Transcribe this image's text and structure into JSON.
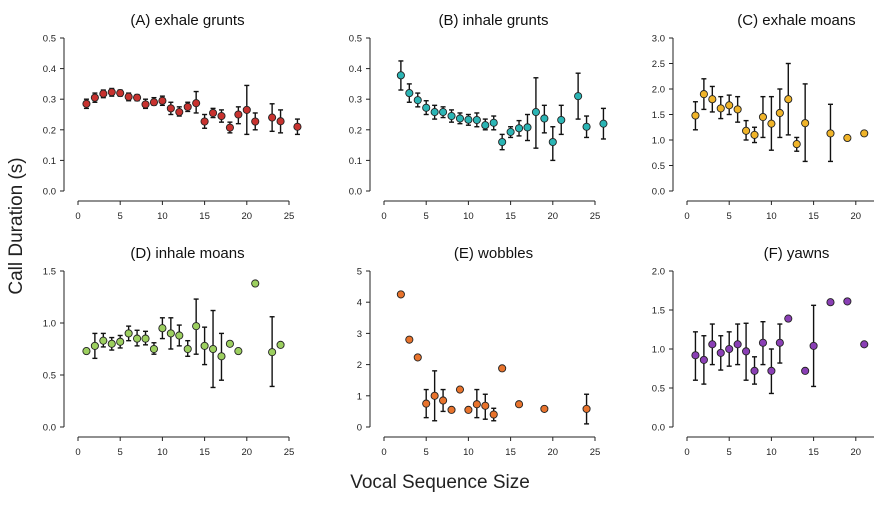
{
  "figure": {
    "ylabel": "Call Duration (s)",
    "xlabel": "Vocal Sequence Size"
  },
  "chart_data": [
    {
      "type": "scatter",
      "title": "(A) exhale grunts",
      "color": "#c8322f",
      "xlim": [
        0,
        27
      ],
      "ylim": [
        0,
        0.5
      ],
      "xticks": [
        0,
        5,
        10,
        15,
        20,
        25
      ],
      "yticks": [
        "0.0",
        "0.1",
        "0.2",
        "0.3",
        "0.4",
        "0.5"
      ],
      "points": [
        {
          "x": 1,
          "y": 0.285,
          "lo": 0.27,
          "hi": 0.3
        },
        {
          "x": 2,
          "y": 0.305,
          "lo": 0.29,
          "hi": 0.32
        },
        {
          "x": 3,
          "y": 0.318,
          "lo": 0.305,
          "hi": 0.33
        },
        {
          "x": 4,
          "y": 0.323,
          "lo": 0.31,
          "hi": 0.335
        },
        {
          "x": 5,
          "y": 0.32,
          "lo": 0.31,
          "hi": 0.33
        },
        {
          "x": 6,
          "y": 0.308,
          "lo": 0.295,
          "hi": 0.32
        },
        {
          "x": 7,
          "y": 0.305,
          "lo": 0.295,
          "hi": 0.315
        },
        {
          "x": 8,
          "y": 0.283,
          "lo": 0.27,
          "hi": 0.3
        },
        {
          "x": 9,
          "y": 0.29,
          "lo": 0.28,
          "hi": 0.305
        },
        {
          "x": 10,
          "y": 0.295,
          "lo": 0.28,
          "hi": 0.31
        },
        {
          "x": 11,
          "y": 0.27,
          "lo": 0.25,
          "hi": 0.29
        },
        {
          "x": 12,
          "y": 0.258,
          "lo": 0.245,
          "hi": 0.275
        },
        {
          "x": 13,
          "y": 0.275,
          "lo": 0.26,
          "hi": 0.29
        },
        {
          "x": 14,
          "y": 0.287,
          "lo": 0.255,
          "hi": 0.325
        },
        {
          "x": 15,
          "y": 0.227,
          "lo": 0.205,
          "hi": 0.25
        },
        {
          "x": 16,
          "y": 0.255,
          "lo": 0.24,
          "hi": 0.27
        },
        {
          "x": 17,
          "y": 0.245,
          "lo": 0.225,
          "hi": 0.265
        },
        {
          "x": 18,
          "y": 0.207,
          "lo": 0.19,
          "hi": 0.225
        },
        {
          "x": 19,
          "y": 0.25,
          "lo": 0.22,
          "hi": 0.275
        },
        {
          "x": 20,
          "y": 0.265,
          "lo": 0.185,
          "hi": 0.345
        },
        {
          "x": 21,
          "y": 0.227,
          "lo": 0.2,
          "hi": 0.255
        },
        {
          "x": 23,
          "y": 0.24,
          "lo": 0.195,
          "hi": 0.285
        },
        {
          "x": 24,
          "y": 0.228,
          "lo": 0.19,
          "hi": 0.265
        },
        {
          "x": 26,
          "y": 0.21,
          "lo": 0.185,
          "hi": 0.235
        }
      ]
    },
    {
      "type": "scatter",
      "title": "(B) inhale grunts",
      "color": "#2bb5b5",
      "xlim": [
        0,
        27
      ],
      "ylim": [
        0,
        0.5
      ],
      "xticks": [
        0,
        5,
        10,
        15,
        20,
        25
      ],
      "yticks": [
        "0.0",
        "0.1",
        "0.2",
        "0.3",
        "0.4",
        "0.5"
      ],
      "points": [
        {
          "x": 2,
          "y": 0.378,
          "lo": 0.33,
          "hi": 0.425
        },
        {
          "x": 3,
          "y": 0.32,
          "lo": 0.29,
          "hi": 0.35
        },
        {
          "x": 4,
          "y": 0.297,
          "lo": 0.275,
          "hi": 0.32
        },
        {
          "x": 5,
          "y": 0.272,
          "lo": 0.25,
          "hi": 0.295
        },
        {
          "x": 6,
          "y": 0.258,
          "lo": 0.235,
          "hi": 0.28
        },
        {
          "x": 7,
          "y": 0.258,
          "lo": 0.24,
          "hi": 0.275
        },
        {
          "x": 8,
          "y": 0.245,
          "lo": 0.225,
          "hi": 0.265
        },
        {
          "x": 9,
          "y": 0.237,
          "lo": 0.22,
          "hi": 0.255
        },
        {
          "x": 10,
          "y": 0.233,
          "lo": 0.215,
          "hi": 0.25
        },
        {
          "x": 11,
          "y": 0.232,
          "lo": 0.21,
          "hi": 0.255
        },
        {
          "x": 12,
          "y": 0.215,
          "lo": 0.2,
          "hi": 0.235
        },
        {
          "x": 13,
          "y": 0.223,
          "lo": 0.2,
          "hi": 0.245
        },
        {
          "x": 14,
          "y": 0.16,
          "lo": 0.135,
          "hi": 0.185
        },
        {
          "x": 15,
          "y": 0.193,
          "lo": 0.175,
          "hi": 0.21
        },
        {
          "x": 16,
          "y": 0.205,
          "lo": 0.18,
          "hi": 0.23
        },
        {
          "x": 17,
          "y": 0.208,
          "lo": 0.165,
          "hi": 0.25
        },
        {
          "x": 18,
          "y": 0.258,
          "lo": 0.14,
          "hi": 0.37
        },
        {
          "x": 19,
          "y": 0.237,
          "lo": 0.19,
          "hi": 0.28
        },
        {
          "x": 20,
          "y": 0.16,
          "lo": 0.1,
          "hi": 0.21
        },
        {
          "x": 21,
          "y": 0.232,
          "lo": 0.185,
          "hi": 0.28
        },
        {
          "x": 23,
          "y": 0.31,
          "lo": 0.235,
          "hi": 0.385
        },
        {
          "x": 24,
          "y": 0.21,
          "lo": 0.175,
          "hi": 0.245
        },
        {
          "x": 26,
          "y": 0.22,
          "lo": 0.17,
          "hi": 0.27
        }
      ]
    },
    {
      "type": "scatter",
      "title": "(C) exhale moans",
      "color": "#f0b429",
      "xlim": [
        0,
        27
      ],
      "ylim": [
        0,
        3.0
      ],
      "xticks": [
        0,
        5,
        10,
        15,
        20,
        25
      ],
      "yticks": [
        "0.0",
        "0.5",
        "1.0",
        "1.5",
        "2.0",
        "2.5",
        "3.0"
      ],
      "points": [
        {
          "x": 1,
          "y": 1.48,
          "lo": 1.2,
          "hi": 1.75
        },
        {
          "x": 2,
          "y": 1.9,
          "lo": 1.6,
          "hi": 2.2
        },
        {
          "x": 3,
          "y": 1.8,
          "lo": 1.55,
          "hi": 2.05
        },
        {
          "x": 4,
          "y": 1.62,
          "lo": 1.42,
          "hi": 1.85
        },
        {
          "x": 5,
          "y": 1.68,
          "lo": 1.5,
          "hi": 1.88
        },
        {
          "x": 6,
          "y": 1.6,
          "lo": 1.35,
          "hi": 1.85
        },
        {
          "x": 7,
          "y": 1.18,
          "lo": 1.0,
          "hi": 1.38
        },
        {
          "x": 8,
          "y": 1.1,
          "lo": 0.95,
          "hi": 1.25
        },
        {
          "x": 9,
          "y": 1.45,
          "lo": 1.05,
          "hi": 1.85
        },
        {
          "x": 10,
          "y": 1.32,
          "lo": 0.8,
          "hi": 1.85
        },
        {
          "x": 11,
          "y": 1.53,
          "lo": 1.05,
          "hi": 2.0
        },
        {
          "x": 12,
          "y": 1.8,
          "lo": 1.1,
          "hi": 2.5
        },
        {
          "x": 13,
          "y": 0.92,
          "lo": 0.78,
          "hi": 1.05
        },
        {
          "x": 14,
          "y": 1.33,
          "lo": 0.58,
          "hi": 2.1
        },
        {
          "x": 17,
          "y": 1.13,
          "lo": 0.58,
          "hi": 1.7
        },
        {
          "x": 19,
          "y": 1.04,
          "lo": 1.04,
          "hi": 1.04
        },
        {
          "x": 21,
          "y": 1.13,
          "lo": 1.13,
          "hi": 1.13
        }
      ]
    },
    {
      "type": "scatter",
      "title": "(D) inhale moans",
      "color": "#9ccf5f",
      "xlim": [
        0,
        27
      ],
      "ylim": [
        0,
        1.5
      ],
      "xticks": [
        0,
        5,
        10,
        15,
        20,
        25
      ],
      "yticks": [
        "0.0",
        "0.5",
        "1.0",
        "1.5"
      ],
      "points": [
        {
          "x": 1,
          "y": 0.73,
          "lo": 0.73,
          "hi": 0.73
        },
        {
          "x": 2,
          "y": 0.78,
          "lo": 0.66,
          "hi": 0.9
        },
        {
          "x": 3,
          "y": 0.83,
          "lo": 0.77,
          "hi": 0.9
        },
        {
          "x": 4,
          "y": 0.8,
          "lo": 0.74,
          "hi": 0.86
        },
        {
          "x": 5,
          "y": 0.82,
          "lo": 0.76,
          "hi": 0.88
        },
        {
          "x": 6,
          "y": 0.9,
          "lo": 0.83,
          "hi": 0.97
        },
        {
          "x": 7,
          "y": 0.85,
          "lo": 0.78,
          "hi": 0.93
        },
        {
          "x": 8,
          "y": 0.85,
          "lo": 0.79,
          "hi": 0.92
        },
        {
          "x": 9,
          "y": 0.75,
          "lo": 0.7,
          "hi": 0.81
        },
        {
          "x": 10,
          "y": 0.95,
          "lo": 0.85,
          "hi": 1.05
        },
        {
          "x": 11,
          "y": 0.9,
          "lo": 0.75,
          "hi": 1.05
        },
        {
          "x": 12,
          "y": 0.88,
          "lo": 0.78,
          "hi": 0.98
        },
        {
          "x": 13,
          "y": 0.75,
          "lo": 0.68,
          "hi": 0.83
        },
        {
          "x": 14,
          "y": 0.97,
          "lo": 0.7,
          "hi": 1.23
        },
        {
          "x": 15,
          "y": 0.78,
          "lo": 0.6,
          "hi": 0.96
        },
        {
          "x": 16,
          "y": 0.75,
          "lo": 0.38,
          "hi": 1.12
        },
        {
          "x": 17,
          "y": 0.68,
          "lo": 0.45,
          "hi": 0.9
        },
        {
          "x": 18,
          "y": 0.8,
          "lo": 0.8,
          "hi": 0.8
        },
        {
          "x": 19,
          "y": 0.73,
          "lo": 0.73,
          "hi": 0.73
        },
        {
          "x": 21,
          "y": 1.38,
          "lo": 1.38,
          "hi": 1.38
        },
        {
          "x": 23,
          "y": 0.72,
          "lo": 0.39,
          "hi": 1.06
        },
        {
          "x": 24,
          "y": 0.79,
          "lo": 0.79,
          "hi": 0.79
        }
      ]
    },
    {
      "type": "scatter",
      "title": "(E) wobbles",
      "color": "#e8732c",
      "xlim": [
        0,
        27
      ],
      "ylim": [
        0,
        5
      ],
      "xticks": [
        0,
        5,
        10,
        15,
        20,
        25
      ],
      "yticks": [
        "0",
        "1",
        "2",
        "3",
        "4",
        "5"
      ],
      "points": [
        {
          "x": 2,
          "y": 4.25,
          "lo": 4.25,
          "hi": 4.25
        },
        {
          "x": 3,
          "y": 2.8,
          "lo": 2.8,
          "hi": 2.8
        },
        {
          "x": 4,
          "y": 2.23,
          "lo": 2.23,
          "hi": 2.23
        },
        {
          "x": 5,
          "y": 0.75,
          "lo": 0.3,
          "hi": 1.2
        },
        {
          "x": 6,
          "y": 1.0,
          "lo": 0.2,
          "hi": 1.8
        },
        {
          "x": 7,
          "y": 0.85,
          "lo": 0.5,
          "hi": 1.2
        },
        {
          "x": 8,
          "y": 0.55,
          "lo": 0.55,
          "hi": 0.55
        },
        {
          "x": 9,
          "y": 1.2,
          "lo": 1.2,
          "hi": 1.2
        },
        {
          "x": 10,
          "y": 0.55,
          "lo": 0.55,
          "hi": 0.55
        },
        {
          "x": 11,
          "y": 0.73,
          "lo": 0.3,
          "hi": 1.2
        },
        {
          "x": 12,
          "y": 0.68,
          "lo": 0.25,
          "hi": 1.05
        },
        {
          "x": 13,
          "y": 0.4,
          "lo": 0.2,
          "hi": 0.6
        },
        {
          "x": 14,
          "y": 1.88,
          "lo": 1.88,
          "hi": 1.88
        },
        {
          "x": 16,
          "y": 0.73,
          "lo": 0.73,
          "hi": 0.73
        },
        {
          "x": 19,
          "y": 0.58,
          "lo": 0.58,
          "hi": 0.58
        },
        {
          "x": 24,
          "y": 0.58,
          "lo": 0.1,
          "hi": 1.05
        }
      ]
    },
    {
      "type": "scatter",
      "title": "(F) yawns",
      "color": "#8a3fb5",
      "xlim": [
        0,
        27
      ],
      "ylim": [
        0,
        2.0
      ],
      "xticks": [
        0,
        5,
        10,
        15,
        20,
        25
      ],
      "yticks": [
        "0.0",
        "0.5",
        "1.0",
        "1.5",
        "2.0"
      ],
      "points": [
        {
          "x": 1,
          "y": 0.92,
          "lo": 0.6,
          "hi": 1.22
        },
        {
          "x": 2,
          "y": 0.86,
          "lo": 0.55,
          "hi": 1.17
        },
        {
          "x": 3,
          "y": 1.06,
          "lo": 0.8,
          "hi": 1.32
        },
        {
          "x": 4,
          "y": 0.95,
          "lo": 0.73,
          "hi": 1.17
        },
        {
          "x": 5,
          "y": 1.0,
          "lo": 0.78,
          "hi": 1.22
        },
        {
          "x": 6,
          "y": 1.06,
          "lo": 0.8,
          "hi": 1.32
        },
        {
          "x": 7,
          "y": 0.97,
          "lo": 0.6,
          "hi": 1.33
        },
        {
          "x": 8,
          "y": 0.72,
          "lo": 0.55,
          "hi": 0.9
        },
        {
          "x": 9,
          "y": 1.08,
          "lo": 0.8,
          "hi": 1.35
        },
        {
          "x": 10,
          "y": 0.72,
          "lo": 0.43,
          "hi": 1.0
        },
        {
          "x": 11,
          "y": 1.08,
          "lo": 0.82,
          "hi": 1.32
        },
        {
          "x": 12,
          "y": 1.39,
          "lo": 1.39,
          "hi": 1.39
        },
        {
          "x": 14,
          "y": 0.72,
          "lo": 0.72,
          "hi": 0.72
        },
        {
          "x": 15,
          "y": 1.04,
          "lo": 0.52,
          "hi": 1.56
        },
        {
          "x": 17,
          "y": 1.6,
          "lo": 1.6,
          "hi": 1.6
        },
        {
          "x": 19,
          "y": 1.61,
          "lo": 1.61,
          "hi": 1.61
        },
        {
          "x": 21,
          "y": 1.06,
          "lo": 1.06,
          "hi": 1.06
        }
      ]
    }
  ]
}
